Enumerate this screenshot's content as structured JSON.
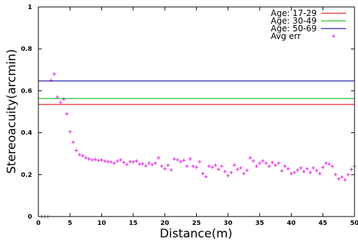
{
  "chart_data": {
    "type": "line",
    "title": "",
    "xlabel": "Distance(m)",
    "ylabel": "Stereoacuity(arcmin)",
    "xlim": [
      0,
      50
    ],
    "ylim": [
      0,
      1
    ],
    "grid": false,
    "legend_position": "top-right",
    "x_ticks": [
      "0",
      "5",
      "10",
      "15",
      "20",
      "25",
      "30",
      "35",
      "40",
      "45",
      "50"
    ],
    "y_ticks": [
      "0",
      "0.2",
      "0.4",
      "0.6",
      "0.8",
      "1"
    ],
    "horizontal_series": [
      {
        "name": "Age: 17-29",
        "value": 0.535,
        "color": "#e0202a"
      },
      {
        "name": "Age: 30-49",
        "value": 0.563,
        "color": "#22c322"
      },
      {
        "name": "Age: 50-69",
        "value": 0.647,
        "color": "#2020a8"
      }
    ],
    "scatter_series": {
      "name": "Avg err",
      "color": "#e020e0",
      "marker": "+",
      "points": [
        [
          0.5,
          0.0
        ],
        [
          1.0,
          0.0
        ],
        [
          1.5,
          0.0
        ],
        [
          2.0,
          0.65
        ],
        [
          2.5,
          0.68
        ],
        [
          3.0,
          0.57
        ],
        [
          3.5,
          0.545
        ],
        [
          4.0,
          0.56
        ],
        [
          4.5,
          0.49
        ],
        [
          5.0,
          0.405
        ],
        [
          5.5,
          0.355
        ],
        [
          6.0,
          0.315
        ],
        [
          6.5,
          0.295
        ],
        [
          7.0,
          0.29
        ],
        [
          7.5,
          0.28
        ],
        [
          8.0,
          0.275
        ],
        [
          8.5,
          0.27
        ],
        [
          9.0,
          0.272
        ],
        [
          9.5,
          0.268
        ],
        [
          10.0,
          0.27
        ],
        [
          10.5,
          0.265
        ],
        [
          11.0,
          0.262
        ],
        [
          11.5,
          0.26
        ],
        [
          12.0,
          0.255
        ],
        [
          12.5,
          0.265
        ],
        [
          13.0,
          0.27
        ],
        [
          13.5,
          0.258
        ],
        [
          14.0,
          0.248
        ],
        [
          14.5,
          0.262
        ],
        [
          15.0,
          0.26
        ],
        [
          15.5,
          0.265
        ],
        [
          16.0,
          0.25
        ],
        [
          16.5,
          0.252
        ],
        [
          17.0,
          0.242
        ],
        [
          17.5,
          0.255
        ],
        [
          18.0,
          0.248
        ],
        [
          18.5,
          0.255
        ],
        [
          19.0,
          0.28
        ],
        [
          19.5,
          0.24
        ],
        [
          20.0,
          0.228
        ],
        [
          20.5,
          0.245
        ],
        [
          21.0,
          0.222
        ],
        [
          21.5,
          0.275
        ],
        [
          22.0,
          0.27
        ],
        [
          22.5,
          0.262
        ],
        [
          23.0,
          0.268
        ],
        [
          23.5,
          0.24
        ],
        [
          24.0,
          0.275
        ],
        [
          24.5,
          0.24
        ],
        [
          25.0,
          0.235
        ],
        [
          25.5,
          0.262
        ],
        [
          26.0,
          0.205
        ],
        [
          26.5,
          0.19
        ],
        [
          27.0,
          0.24
        ],
        [
          27.5,
          0.235
        ],
        [
          28.0,
          0.245
        ],
        [
          28.5,
          0.225
        ],
        [
          29.0,
          0.24
        ],
        [
          29.5,
          0.215
        ],
        [
          30.0,
          0.195
        ],
        [
          30.5,
          0.21
        ],
        [
          31.0,
          0.245
        ],
        [
          31.5,
          0.225
        ],
        [
          32.0,
          0.232
        ],
        [
          32.5,
          0.205
        ],
        [
          33.0,
          0.22
        ],
        [
          33.5,
          0.28
        ],
        [
          34.0,
          0.265
        ],
        [
          34.5,
          0.24
        ],
        [
          35.0,
          0.255
        ],
        [
          35.5,
          0.265
        ],
        [
          36.0,
          0.255
        ],
        [
          36.5,
          0.24
        ],
        [
          37.0,
          0.258
        ],
        [
          37.5,
          0.245
        ],
        [
          38.0,
          0.255
        ],
        [
          38.5,
          0.218
        ],
        [
          39.0,
          0.24
        ],
        [
          39.5,
          0.228
        ],
        [
          40.0,
          0.205
        ],
        [
          40.5,
          0.21
        ],
        [
          41.0,
          0.222
        ],
        [
          41.5,
          0.232
        ],
        [
          42.0,
          0.215
        ],
        [
          42.5,
          0.228
        ],
        [
          43.0,
          0.21
        ],
        [
          43.5,
          0.232
        ],
        [
          44.0,
          0.22
        ],
        [
          44.5,
          0.205
        ],
        [
          45.0,
          0.235
        ],
        [
          45.5,
          0.255
        ],
        [
          46.0,
          0.25
        ],
        [
          46.5,
          0.24
        ],
        [
          47.0,
          0.2
        ],
        [
          47.5,
          0.18
        ],
        [
          48.0,
          0.188
        ],
        [
          48.5,
          0.175
        ],
        [
          49.0,
          0.2
        ],
        [
          49.5,
          0.225
        ],
        [
          50.0,
          0.24
        ]
      ]
    }
  }
}
